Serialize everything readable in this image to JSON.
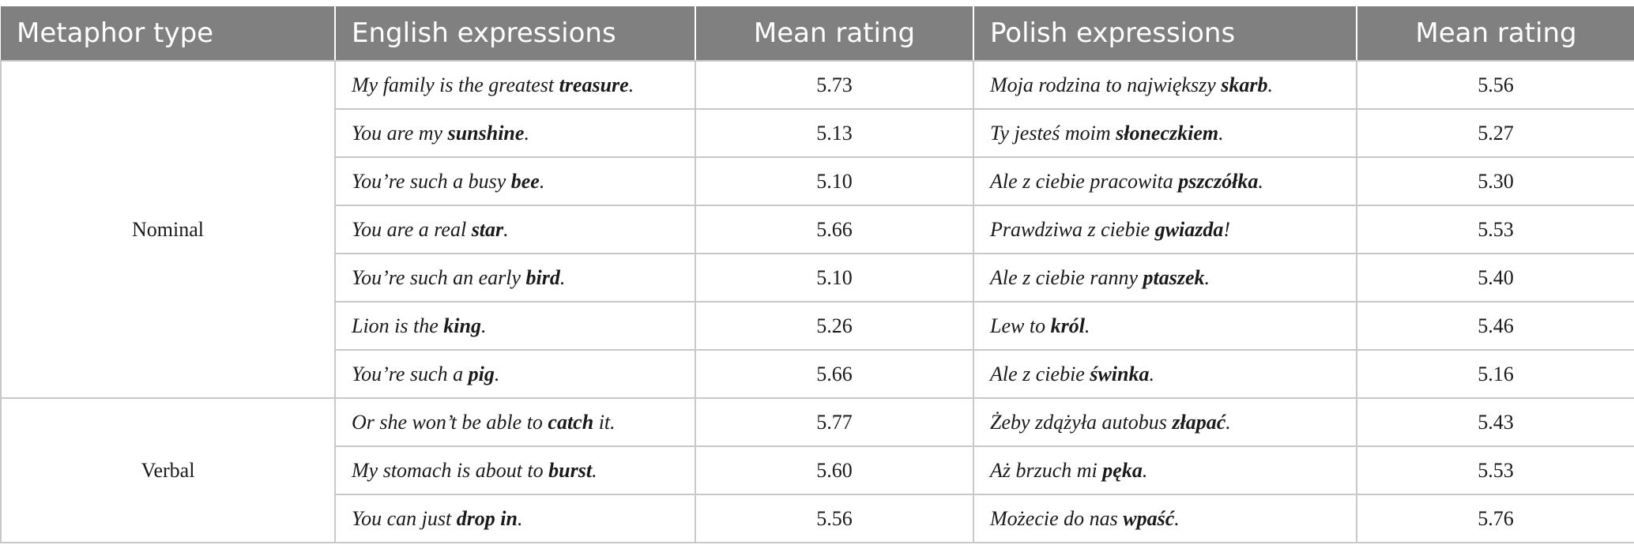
{
  "headers": {
    "metaphor_type": "Metaphor type",
    "english": "English expressions",
    "english_rating": "Mean rating",
    "polish": "Polish expressions",
    "polish_rating": "Mean rating"
  },
  "groups": [
    {
      "type": "Nominal",
      "rows": [
        {
          "en_pre": "My family is the greatest ",
          "en_kw": "treasure",
          "en_post": ".",
          "en_rating": "5.73",
          "pl_pre": "Moja rodzina to największy ",
          "pl_kw": "skarb",
          "pl_post": ".",
          "pl_rating": "5.56"
        },
        {
          "en_pre": "You are my ",
          "en_kw": "sunshine",
          "en_post": ".",
          "en_rating": "5.13",
          "pl_pre": "Ty jesteś moim ",
          "pl_kw": "słoneczkiem",
          "pl_post": ".",
          "pl_rating": "5.27"
        },
        {
          "en_pre": "You’re such a busy ",
          "en_kw": "bee",
          "en_post": ".",
          "en_rating": "5.10",
          "pl_pre": "Ale z ciebie pracowita ",
          "pl_kw": "pszczółka",
          "pl_post": ".",
          "pl_rating": "5.30"
        },
        {
          "en_pre": "You are a real ",
          "en_kw": "star",
          "en_post": ".",
          "en_rating": "5.66",
          "pl_pre": "Prawdziwa z ciebie ",
          "pl_kw": "gwiazda",
          "pl_post": "!",
          "pl_rating": "5.53"
        },
        {
          "en_pre": "You’re such an early ",
          "en_kw": "bird",
          "en_post": ".",
          "en_rating": "5.10",
          "pl_pre": "Ale z ciebie ranny ",
          "pl_kw": "ptaszek",
          "pl_post": ".",
          "pl_rating": "5.40"
        },
        {
          "en_pre": "Lion is the ",
          "en_kw": "king",
          "en_post": ".",
          "en_rating": "5.26",
          "pl_pre": "Lew to ",
          "pl_kw": "król",
          "pl_post": ".",
          "pl_rating": "5.46"
        },
        {
          "en_pre": "You’re such a ",
          "en_kw": "pig",
          "en_post": ".",
          "en_rating": "5.66",
          "pl_pre": "Ale z ciebie ",
          "pl_kw": "świnka",
          "pl_post": ".",
          "pl_rating": "5.16"
        }
      ]
    },
    {
      "type": "Verbal",
      "rows": [
        {
          "en_pre": "Or she won’t be able to ",
          "en_kw": "catch",
          "en_post": " it.",
          "en_rating": "5.77",
          "pl_pre": "Żeby zdążyła autobus ",
          "pl_kw": "złapać",
          "pl_post": ".",
          "pl_rating": "5.43"
        },
        {
          "en_pre": "My stomach is about to ",
          "en_kw": "burst",
          "en_post": ".",
          "en_rating": "5.60",
          "pl_pre": "Aż brzuch mi ",
          "pl_kw": "pęka",
          "pl_post": ".",
          "pl_rating": "5.53"
        },
        {
          "en_pre": "You can just ",
          "en_kw": "drop in",
          "en_post": ".",
          "en_rating": "5.56",
          "pl_pre": "Możecie do nas ",
          "pl_kw": "wpaść",
          "pl_post": ".",
          "pl_rating": "5.76"
        }
      ]
    }
  ]
}
